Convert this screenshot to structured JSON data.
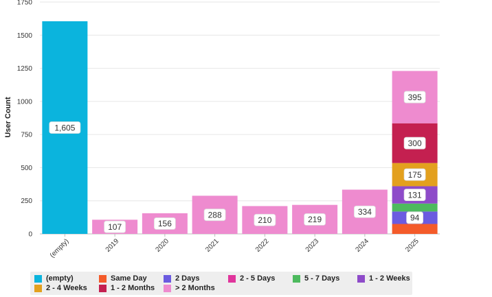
{
  "chart_data": {
    "type": "bar",
    "stacked": true,
    "ylabel": "User Count",
    "xlabel": "",
    "ylim": [
      0,
      1750
    ],
    "yticks": [
      0,
      250,
      500,
      750,
      1000,
      1250,
      1500,
      1750
    ],
    "grid": true,
    "legend_position": "bottom",
    "categories": [
      "(empty)",
      "2019",
      "2020",
      "2021",
      "2022",
      "2023",
      "2024",
      "2025"
    ],
    "series": [
      {
        "name": "(empty)",
        "color": "#0BB4DD",
        "values": [
          1605,
          0,
          0,
          0,
          0,
          0,
          0,
          0
        ]
      },
      {
        "name": "Same Day",
        "color": "#F45B2A",
        "values": [
          0,
          0,
          0,
          0,
          0,
          0,
          0,
          75
        ]
      },
      {
        "name": "2 Days",
        "color": "#6B5BE0",
        "values": [
          0,
          0,
          0,
          0,
          0,
          0,
          0,
          94
        ]
      },
      {
        "name": "2 - 5 Days",
        "color": "#E0359C",
        "values": [
          0,
          0,
          0,
          0,
          0,
          0,
          0,
          0
        ]
      },
      {
        "name": "5 - 7 Days",
        "color": "#4DBA5E",
        "values": [
          0,
          0,
          0,
          0,
          0,
          0,
          0,
          60
        ]
      },
      {
        "name": "1 - 2 Weeks",
        "color": "#8E4BC9",
        "values": [
          0,
          0,
          0,
          0,
          0,
          0,
          0,
          131
        ]
      },
      {
        "name": "2 - 4 Weeks",
        "color": "#E3A01E",
        "values": [
          0,
          0,
          0,
          0,
          0,
          0,
          0,
          175
        ]
      },
      {
        "name": "1 - 2 Months",
        "color": "#C42050",
        "values": [
          0,
          0,
          0,
          0,
          0,
          0,
          0,
          300
        ]
      },
      {
        "name": "> 2 Months",
        "color": "#EE8BCF",
        "values": [
          0,
          107,
          156,
          288,
          210,
          219,
          334,
          395
        ]
      }
    ],
    "data_labels": [
      {
        "category": "(empty)",
        "series": "(empty)",
        "text": "1,605"
      },
      {
        "category": "2019",
        "series": "> 2 Months",
        "text": "107"
      },
      {
        "category": "2020",
        "series": "> 2 Months",
        "text": "156"
      },
      {
        "category": "2021",
        "series": "> 2 Months",
        "text": "288"
      },
      {
        "category": "2022",
        "series": "> 2 Months",
        "text": "210"
      },
      {
        "category": "2023",
        "series": "> 2 Months",
        "text": "219"
      },
      {
        "category": "2024",
        "series": "> 2 Months",
        "text": "334"
      },
      {
        "category": "2025",
        "series": "> 2 Months",
        "text": "395"
      },
      {
        "category": "2025",
        "series": "1 - 2 Months",
        "text": "300"
      },
      {
        "category": "2025",
        "series": "2 - 4 Weeks",
        "text": "175"
      },
      {
        "category": "2025",
        "series": "1 - 2 Weeks",
        "text": "131"
      },
      {
        "category": "2025",
        "series": "2 Days",
        "text": "94"
      }
    ]
  },
  "legend": {
    "items": [
      {
        "label": "(empty)",
        "color": "#0BB4DD"
      },
      {
        "label": "Same Day",
        "color": "#F45B2A"
      },
      {
        "label": "2 Days",
        "color": "#6B5BE0"
      },
      {
        "label": "2 - 5 Days",
        "color": "#E0359C"
      },
      {
        "label": "5 - 7 Days",
        "color": "#4DBA5E"
      },
      {
        "label": "1 - 2 Weeks",
        "color": "#8E4BC9"
      },
      {
        "label": "2 - 4 Weeks",
        "color": "#E3A01E"
      },
      {
        "label": "1 - 2 Months",
        "color": "#C42050"
      },
      {
        "label": "> 2 Months",
        "color": "#EE8BCF"
      }
    ]
  }
}
